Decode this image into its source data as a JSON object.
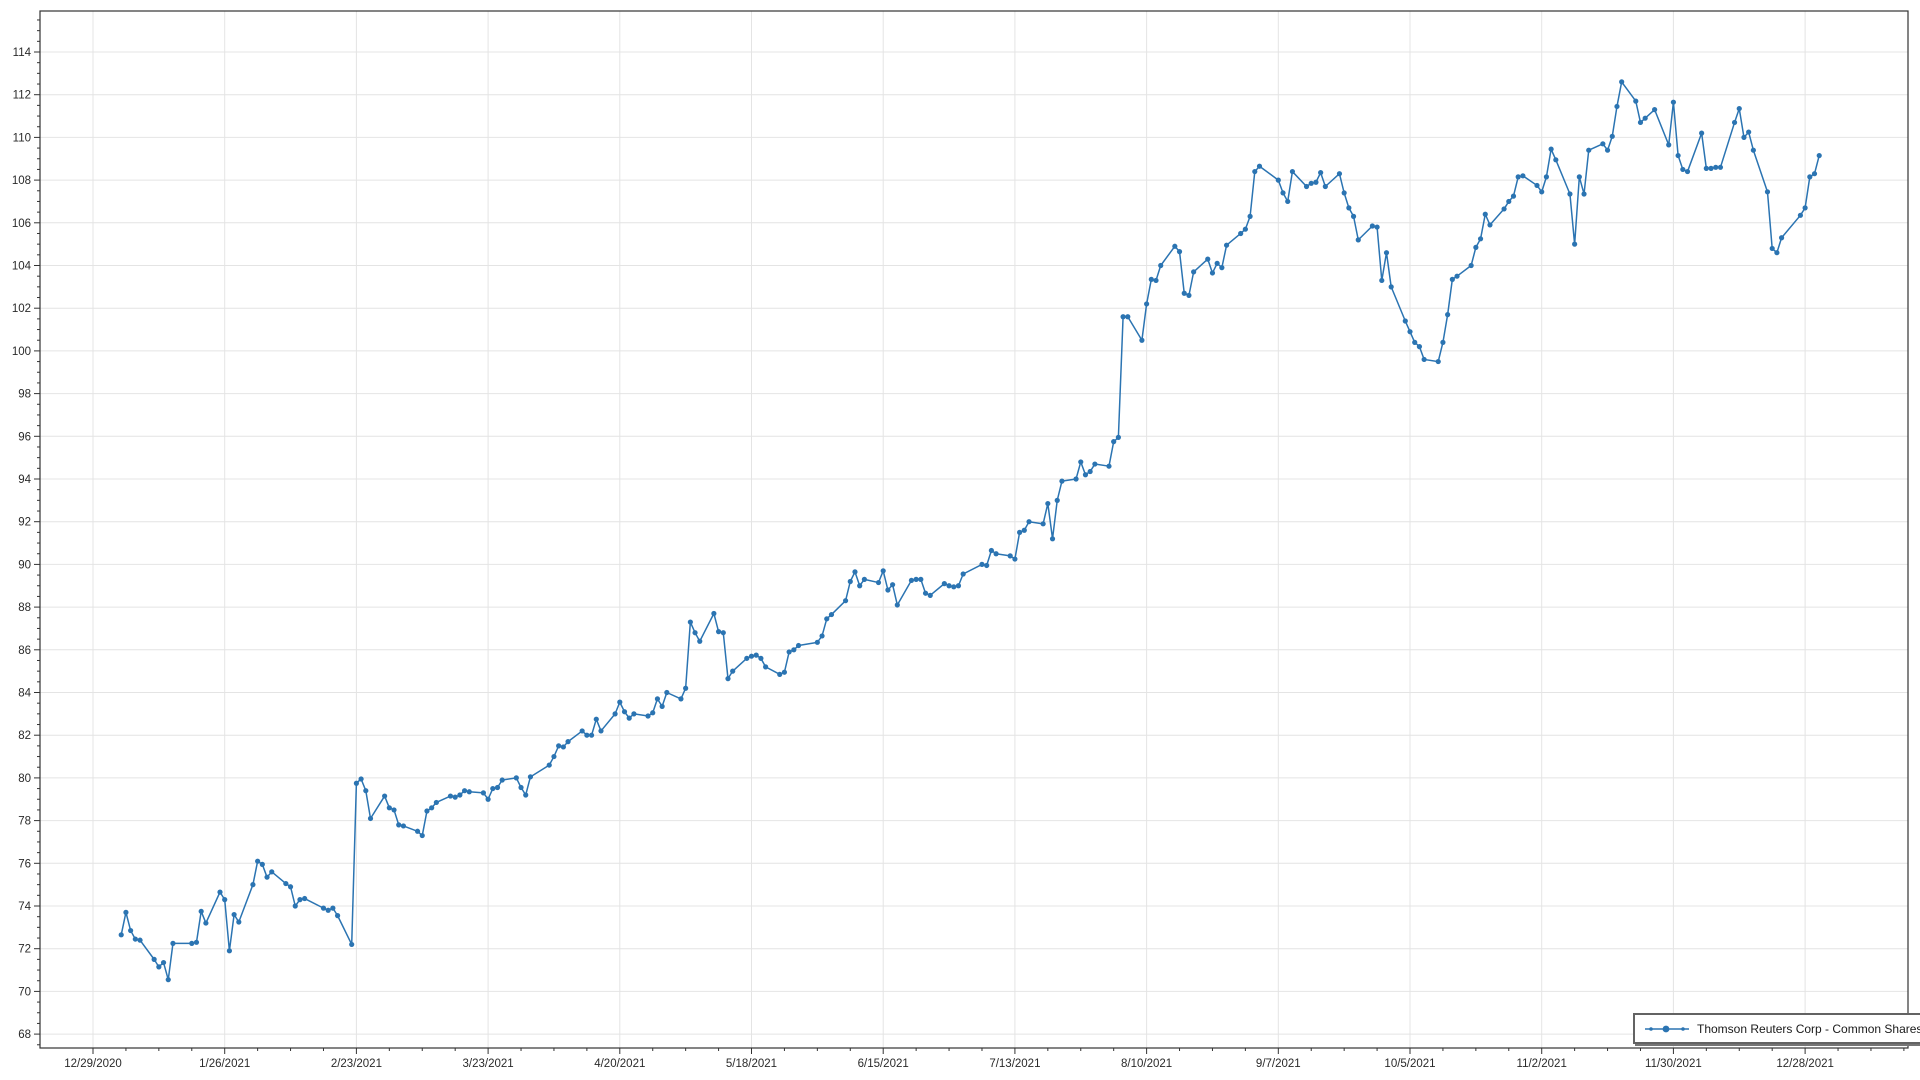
{
  "window": {
    "background": "#ffffff"
  },
  "chart_data": {
    "type": "line",
    "title": "",
    "legend": {
      "label": "Thomson Reuters Corp - Common Shares",
      "position": "bottom-right"
    },
    "grid": {
      "color": "#e4e4e4",
      "axis_color": "#333333",
      "label_color": "#2a2a2a",
      "background": "#ffffff"
    },
    "x_axis": {
      "type": "date",
      "first_tick": "12/29/2020",
      "tick_interval_days": 28,
      "minor_tick_days": 7,
      "tick_labels": [
        "12/29/2020",
        "1/26/2021",
        "2/23/2021",
        "3/23/2021",
        "4/20/2021",
        "5/18/2021",
        "6/15/2021",
        "7/13/2021",
        "8/10/2021",
        "9/7/2021",
        "10/5/2021",
        "11/2/2021",
        "11/30/2021",
        "12/28/2021"
      ]
    },
    "y_axis": {
      "min": 68,
      "max": 114,
      "step": 2,
      "minor_step": 0.5
    },
    "series": [
      {
        "name": "Thomson Reuters Corp - Common Shares",
        "color": "#2b74b2",
        "marker": "circle",
        "dates": [
          "1/4/2021",
          "1/5/2021",
          "1/6/2021",
          "1/7/2021",
          "1/8/2021",
          "1/11/2021",
          "1/12/2021",
          "1/13/2021",
          "1/14/2021",
          "1/15/2021",
          "1/19/2021",
          "1/20/2021",
          "1/21/2021",
          "1/22/2021",
          "1/25/2021",
          "1/26/2021",
          "1/27/2021",
          "1/28/2021",
          "1/29/2021",
          "2/1/2021",
          "2/2/2021",
          "2/3/2021",
          "2/4/2021",
          "2/5/2021",
          "2/8/2021",
          "2/9/2021",
          "2/10/2021",
          "2/11/2021",
          "2/12/2021",
          "2/16/2021",
          "2/17/2021",
          "2/18/2021",
          "2/19/2021",
          "2/22/2021",
          "2/23/2021",
          "2/24/2021",
          "2/25/2021",
          "2/26/2021",
          "3/1/2021",
          "3/2/2021",
          "3/3/2021",
          "3/4/2021",
          "3/5/2021",
          "3/8/2021",
          "3/9/2021",
          "3/10/2021",
          "3/11/2021",
          "3/12/2021",
          "3/15/2021",
          "3/16/2021",
          "3/17/2021",
          "3/18/2021",
          "3/19/2021",
          "3/22/2021",
          "3/23/2021",
          "3/24/2021",
          "3/25/2021",
          "3/26/2021",
          "3/29/2021",
          "3/30/2021",
          "3/31/2021",
          "4/1/2021",
          "4/5/2021",
          "4/6/2021",
          "4/7/2021",
          "4/8/2021",
          "4/9/2021",
          "4/12/2021",
          "4/13/2021",
          "4/14/2021",
          "4/15/2021",
          "4/16/2021",
          "4/19/2021",
          "4/20/2021",
          "4/21/2021",
          "4/22/2021",
          "4/23/2021",
          "4/26/2021",
          "4/27/2021",
          "4/28/2021",
          "4/29/2021",
          "4/30/2021",
          "5/3/2021",
          "5/4/2021",
          "5/5/2021",
          "5/6/2021",
          "5/7/2021",
          "5/10/2021",
          "5/11/2021",
          "5/12/2021",
          "5/13/2021",
          "5/14/2021",
          "5/17/2021",
          "5/18/2021",
          "5/19/2021",
          "5/20/2021",
          "5/21/2021",
          "5/24/2021",
          "5/25/2021",
          "5/26/2021",
          "5/27/2021",
          "5/28/2021",
          "6/1/2021",
          "6/2/2021",
          "6/3/2021",
          "6/4/2021",
          "6/7/2021",
          "6/8/2021",
          "6/9/2021",
          "6/10/2021",
          "6/11/2021",
          "6/14/2021",
          "6/15/2021",
          "6/16/2021",
          "6/17/2021",
          "6/18/2021",
          "6/21/2021",
          "6/22/2021",
          "6/23/2021",
          "6/24/2021",
          "6/25/2021",
          "6/28/2021",
          "6/29/2021",
          "6/30/2021",
          "7/1/2021",
          "7/2/2021",
          "7/6/2021",
          "7/7/2021",
          "7/8/2021",
          "7/9/2021",
          "7/12/2021",
          "7/13/2021",
          "7/14/2021",
          "7/15/2021",
          "7/16/2021",
          "7/19/2021",
          "7/20/2021",
          "7/21/2021",
          "7/22/2021",
          "7/23/2021",
          "7/26/2021",
          "7/27/2021",
          "7/28/2021",
          "7/29/2021",
          "7/30/2021",
          "8/2/2021",
          "8/3/2021",
          "8/4/2021",
          "8/5/2021",
          "8/6/2021",
          "8/9/2021",
          "8/10/2021",
          "8/11/2021",
          "8/12/2021",
          "8/13/2021",
          "8/16/2021",
          "8/17/2021",
          "8/18/2021",
          "8/19/2021",
          "8/20/2021",
          "8/23/2021",
          "8/24/2021",
          "8/25/2021",
          "8/26/2021",
          "8/27/2021",
          "8/30/2021",
          "8/31/2021",
          "9/1/2021",
          "9/2/2021",
          "9/3/2021",
          "9/7/2021",
          "9/8/2021",
          "9/9/2021",
          "9/10/2021",
          "9/13/2021",
          "9/14/2021",
          "9/15/2021",
          "9/16/2021",
          "9/17/2021",
          "9/20/2021",
          "9/21/2021",
          "9/22/2021",
          "9/23/2021",
          "9/24/2021",
          "9/27/2021",
          "9/28/2021",
          "9/29/2021",
          "9/30/2021",
          "10/1/2021",
          "10/4/2021",
          "10/5/2021",
          "10/6/2021",
          "10/7/2021",
          "10/8/2021",
          "10/11/2021",
          "10/12/2021",
          "10/13/2021",
          "10/14/2021",
          "10/15/2021",
          "10/18/2021",
          "10/19/2021",
          "10/20/2021",
          "10/21/2021",
          "10/22/2021",
          "10/25/2021",
          "10/26/2021",
          "10/27/2021",
          "10/28/2021",
          "10/29/2021",
          "11/1/2021",
          "11/2/2021",
          "11/3/2021",
          "11/4/2021",
          "11/5/2021",
          "11/8/2021",
          "11/9/2021",
          "11/10/2021",
          "11/11/2021",
          "11/12/2021",
          "11/15/2021",
          "11/16/2021",
          "11/17/2021",
          "11/18/2021",
          "11/19/2021",
          "11/22/2021",
          "11/23/2021",
          "11/24/2021",
          "11/26/2021",
          "11/29/2021",
          "11/30/2021",
          "12/1/2021",
          "12/2/2021",
          "12/3/2021",
          "12/6/2021",
          "12/7/2021",
          "12/8/2021",
          "12/9/2021",
          "12/10/2021",
          "12/13/2021",
          "12/14/2021",
          "12/15/2021",
          "12/16/2021",
          "12/17/2021",
          "12/20/2021",
          "12/21/2021",
          "12/22/2021",
          "12/23/2021",
          "12/27/2021",
          "12/28/2021",
          "12/29/2021",
          "12/30/2021",
          "12/31/2021"
        ],
        "values": [
          72.65,
          73.7,
          72.85,
          72.45,
          72.4,
          71.5,
          71.15,
          71.35,
          70.55,
          72.25,
          72.25,
          72.3,
          73.75,
          73.2,
          74.65,
          74.3,
          71.9,
          73.6,
          73.25,
          75.0,
          76.1,
          75.95,
          75.35,
          75.6,
          75.05,
          74.9,
          74.0,
          74.3,
          74.35,
          73.9,
          73.8,
          73.9,
          73.55,
          72.2,
          79.75,
          79.95,
          79.4,
          78.1,
          79.15,
          78.6,
          78.5,
          77.8,
          77.75,
          77.5,
          77.3,
          78.45,
          78.6,
          78.85,
          79.15,
          79.1,
          79.2,
          79.4,
          79.35,
          79.3,
          79.0,
          79.5,
          79.55,
          79.9,
          80.0,
          79.55,
          79.2,
          80.05,
          80.6,
          81.0,
          81.5,
          81.45,
          81.7,
          82.2,
          82.0,
          82.0,
          82.75,
          82.2,
          83.0,
          83.55,
          83.1,
          82.8,
          83.0,
          82.9,
          83.05,
          83.7,
          83.35,
          84.0,
          83.7,
          84.2,
          87.3,
          86.8,
          86.4,
          87.7,
          86.85,
          86.8,
          84.65,
          85.0,
          85.6,
          85.7,
          85.75,
          85.6,
          85.2,
          84.85,
          84.95,
          85.9,
          86.0,
          86.2,
          86.35,
          86.65,
          87.45,
          87.65,
          88.3,
          89.2,
          89.65,
          89.0,
          89.3,
          89.15,
          89.7,
          88.8,
          89.05,
          88.1,
          89.25,
          89.3,
          89.3,
          88.65,
          88.55,
          89.1,
          89.0,
          88.95,
          89.0,
          89.55,
          90.0,
          89.95,
          90.65,
          90.5,
          90.4,
          90.25,
          91.5,
          91.6,
          92.0,
          91.9,
          92.85,
          91.2,
          93.0,
          93.9,
          94.0,
          94.8,
          94.2,
          94.35,
          94.7,
          94.6,
          95.75,
          95.95,
          101.6,
          101.6,
          100.5,
          102.2,
          103.35,
          103.3,
          104.0,
          104.9,
          104.65,
          102.7,
          102.6,
          103.7,
          104.3,
          103.65,
          104.1,
          103.9,
          104.95,
          105.5,
          105.7,
          106.3,
          108.4,
          108.65,
          108.0,
          107.4,
          107.0,
          108.4,
          107.7,
          107.85,
          107.9,
          108.35,
          107.7,
          108.3,
          107.4,
          106.7,
          106.3,
          105.2,
          105.85,
          105.8,
          103.3,
          104.6,
          103.0,
          101.4,
          100.9,
          100.4,
          100.2,
          99.6,
          99.5,
          100.4,
          101.7,
          103.35,
          103.5,
          104.0,
          104.85,
          105.25,
          106.4,
          105.9,
          106.65,
          107.0,
          107.25,
          108.15,
          108.2,
          107.75,
          107.45,
          108.15,
          109.45,
          108.95,
          107.35,
          105.0,
          108.15,
          107.35,
          109.4,
          109.7,
          109.4,
          110.05,
          111.45,
          112.6,
          111.7,
          110.7,
          110.9,
          111.3,
          109.65,
          111.65,
          109.15,
          108.5,
          108.4,
          110.2,
          108.55,
          108.55,
          108.6,
          108.6,
          110.7,
          111.35,
          110.0,
          110.25,
          109.4,
          107.45,
          104.8,
          104.6,
          105.3,
          106.35,
          106.7,
          108.15,
          108.3,
          109.15
        ]
      }
    ]
  }
}
